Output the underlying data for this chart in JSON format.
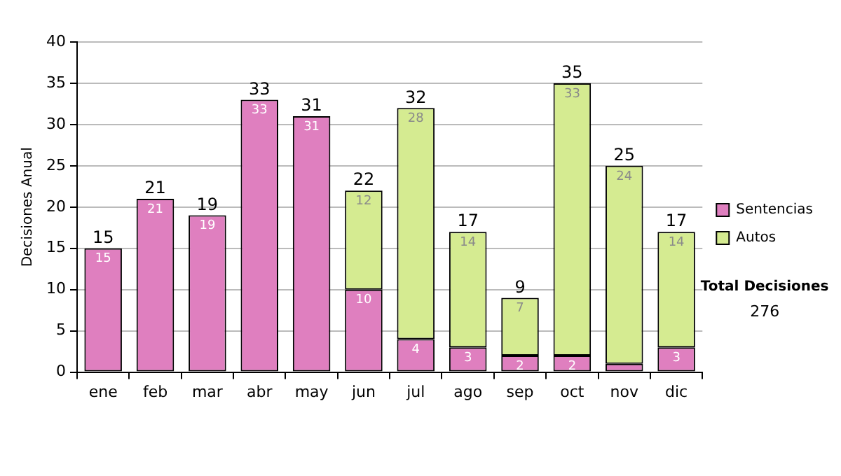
{
  "chart_data": {
    "type": "bar",
    "stacked": true,
    "ylabel": "Decisiones Anual",
    "categories": [
      "ene",
      "feb",
      "mar",
      "abr",
      "may",
      "jun",
      "jul",
      "ago",
      "sep",
      "oct",
      "nov",
      "dic"
    ],
    "series": [
      {
        "name": "Sentencias",
        "color": "#df7fbf",
        "values": [
          15,
          21,
          19,
          33,
          31,
          10,
          4,
          3,
          2,
          2,
          1,
          3
        ],
        "value_labels": [
          "15",
          "21",
          "19",
          "33",
          "31",
          "10",
          "4",
          "3",
          "2",
          "2",
          null,
          "3"
        ]
      },
      {
        "name": "Autos",
        "color": "#d5eb91",
        "values": [
          null,
          null,
          null,
          null,
          null,
          12,
          28,
          14,
          7,
          33,
          24,
          14
        ],
        "value_labels": [
          null,
          null,
          null,
          null,
          null,
          "12",
          "28",
          "14",
          "7",
          "33",
          "24",
          "14"
        ]
      }
    ],
    "totals": [
      "15",
      "21",
      "19",
      "33",
      "31",
      "22",
      "32",
      "17",
      "9",
      "35",
      "25",
      "17"
    ],
    "ylim": [
      0,
      40
    ],
    "yticks": [
      0,
      5,
      10,
      15,
      20,
      25,
      30,
      35,
      40
    ],
    "grid": "y",
    "legend": "right",
    "annotations": [
      "Total Decisiones",
      "276"
    ]
  }
}
